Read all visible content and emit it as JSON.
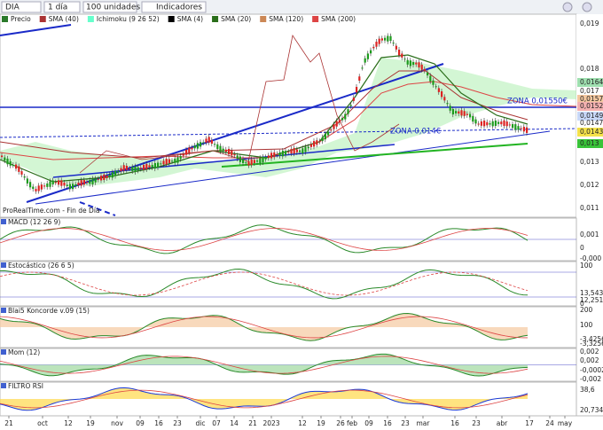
{
  "toolbar": {
    "symbol": "DIA",
    "period": "1 día",
    "units": "100 unidades",
    "indicators": "Indicadores"
  },
  "legend": [
    {
      "label": "Precio",
      "color": "#2b7a2b"
    },
    {
      "label": "SMA (40)",
      "color": "#a33"
    },
    {
      "label": "Ichimoku (9 26 52)",
      "color": "#6fc"
    },
    {
      "label": "SMA (4)",
      "color": "#000"
    },
    {
      "label": "SMA (20)",
      "color": "#2a6e1a"
    },
    {
      "label": "SMA (120)",
      "color": "#c85"
    },
    {
      "label": "SMA (200)",
      "color": "#d44"
    }
  ],
  "annotations": {
    "zone_high": "ZONA 0,01550€",
    "zone_low": "ZONA 0,014€",
    "source": "ProRealTime.com - Fin de Día"
  },
  "price_axis": [
    {
      "label": "0,019",
      "bg": "#fff"
    },
    {
      "label": "0,018",
      "bg": "#fff"
    },
    {
      "label": "0,017",
      "bg": "#fff"
    },
    {
      "label": "0,0164",
      "bg": "#9fe0b0"
    },
    {
      "label": "0,0157",
      "bg": "#f4c8a0"
    },
    {
      "label": "0,0152",
      "bg": "#f3b0b0"
    },
    {
      "label": "0,0149",
      "bg": "#c8d8f8"
    },
    {
      "label": "0,0147",
      "bg": "#fff"
    },
    {
      "label": "0,0143",
      "bg": "#f5e24a"
    },
    {
      "label": "0,013",
      "bg": "#39c439"
    },
    {
      "label": "0,013",
      "bg": "#fff"
    },
    {
      "label": "0,012",
      "bg": "#fff"
    },
    {
      "label": "0,011",
      "bg": "#fff"
    }
  ],
  "panels": [
    {
      "title": "MACD (12 26 9)",
      "axis": [
        "0,001",
        "0",
        "-0,000"
      ]
    },
    {
      "title": "Estocástico (26 6 5)",
      "axis": [
        "100",
        "13,543",
        "12,251",
        "0"
      ]
    },
    {
      "title": "Blai5 Koncorde v.09 (15)",
      "axis": [
        "200",
        "100",
        "-3,4256",
        "-3,3256"
      ]
    },
    {
      "title": "Mom (12)",
      "axis": [
        "0,002",
        "0,002",
        "-0,0002",
        "-0,002"
      ]
    },
    {
      "title": "FILTRO RSI",
      "axis": [
        "38,6",
        "20,734"
      ]
    }
  ],
  "x_axis": [
    "21",
    "oct",
    "12",
    "19",
    "nov",
    "09",
    "16",
    "23",
    "dic",
    "07",
    "14",
    "21",
    "2023",
    "12",
    "19",
    "26",
    "feb",
    "09",
    "16",
    "23",
    "mar",
    "16",
    "23",
    "abr",
    "17",
    "24",
    "may"
  ]
}
